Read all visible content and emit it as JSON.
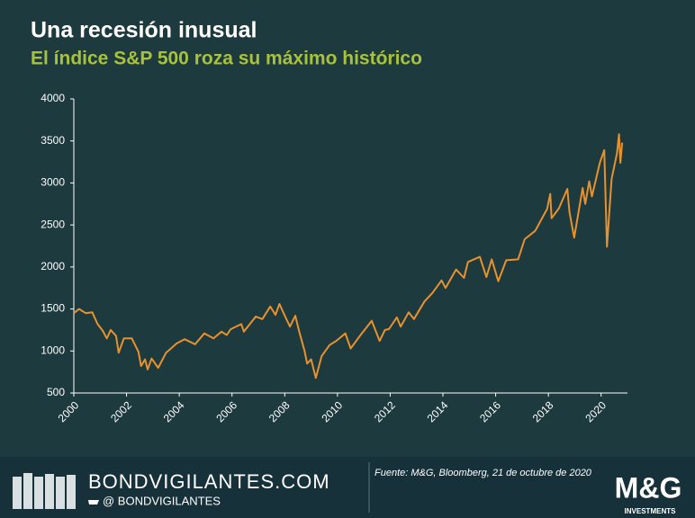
{
  "chart_data": {
    "type": "line",
    "title": "Una recesión inusual",
    "subtitle": "El índice S&P 500 roza su máximo histórico",
    "x": [
      2000.0,
      2000.2,
      2000.45,
      2000.7,
      2000.9,
      2001.1,
      2001.25,
      2001.4,
      2001.6,
      2001.7,
      2001.9,
      2002.2,
      2002.45,
      2002.55,
      2002.7,
      2002.8,
      2002.95,
      2003.2,
      2003.5,
      2003.9,
      2004.2,
      2004.6,
      2004.95,
      2005.3,
      2005.6,
      2005.8,
      2005.95,
      2006.35,
      2006.45,
      2006.9,
      2007.15,
      2007.45,
      2007.65,
      2007.8,
      2008.0,
      2008.2,
      2008.4,
      2008.55,
      2008.75,
      2008.85,
      2009.0,
      2009.18,
      2009.4,
      2009.7,
      2009.95,
      2010.3,
      2010.5,
      2010.9,
      2011.3,
      2011.6,
      2011.8,
      2011.95,
      2012.25,
      2012.4,
      2012.7,
      2012.9,
      2013.3,
      2013.6,
      2013.95,
      2014.1,
      2014.5,
      2014.8,
      2014.95,
      2015.4,
      2015.65,
      2015.85,
      2016.1,
      2016.4,
      2016.85,
      2017.1,
      2017.5,
      2017.95,
      2018.07,
      2018.12,
      2018.4,
      2018.72,
      2018.8,
      2018.98,
      2019.3,
      2019.4,
      2019.55,
      2019.65,
      2019.95,
      2020.12,
      2020.22,
      2020.4,
      2020.6,
      2020.68,
      2020.73,
      2020.8
    ],
    "series": [
      {
        "name": "S&P 500",
        "color": "#e8922e",
        "values": [
          1450,
          1500,
          1450,
          1460,
          1320,
          1240,
          1150,
          1250,
          1180,
          980,
          1150,
          1150,
          990,
          820,
          900,
          780,
          910,
          800,
          980,
          1090,
          1140,
          1080,
          1210,
          1150,
          1230,
          1190,
          1260,
          1320,
          1230,
          1410,
          1380,
          1530,
          1430,
          1560,
          1420,
          1290,
          1420,
          1230,
          1000,
          850,
          900,
          680,
          940,
          1070,
          1120,
          1210,
          1030,
          1200,
          1360,
          1120,
          1250,
          1260,
          1400,
          1290,
          1460,
          1380,
          1590,
          1690,
          1840,
          1750,
          1970,
          1870,
          2060,
          2120,
          1880,
          2090,
          1830,
          2080,
          2090,
          2330,
          2430,
          2690,
          2870,
          2580,
          2700,
          2930,
          2650,
          2350,
          2940,
          2750,
          3020,
          2840,
          3240,
          3390,
          2240,
          3050,
          3350,
          3580,
          3240,
          3480
        ]
      }
    ],
    "xlim": [
      2000,
      2021
    ],
    "xticks": [
      2000,
      2002,
      2004,
      2006,
      2008,
      2010,
      2012,
      2014,
      2016,
      2018,
      2020
    ],
    "ylim": [
      500,
      4000
    ],
    "yticks": [
      500,
      1000,
      1500,
      2000,
      2500,
      3000,
      3500,
      4000
    ]
  },
  "footer": {
    "site": "BONDVIGILANTES.COM",
    "handle": "@ BONDVIGILANTES",
    "source": "Fuente: M&G, Bloomberg, 21 de octubre de 2020",
    "logo": "M&G",
    "logo_sub": "INVESTMENTS"
  }
}
